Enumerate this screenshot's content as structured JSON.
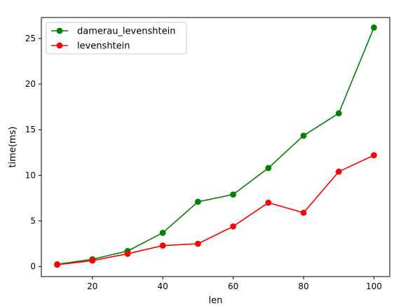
{
  "chart_data": {
    "type": "line",
    "xlabel": "len",
    "ylabel": "time(ms)",
    "x": [
      10,
      20,
      30,
      40,
      50,
      60,
      70,
      80,
      90,
      100
    ],
    "xlim": [
      5.5,
      104.5
    ],
    "ylim": [
      -1.1,
      27.3
    ],
    "xticks": [
      20,
      40,
      60,
      80,
      100
    ],
    "yticks": [
      0,
      5,
      10,
      15,
      20,
      25
    ],
    "grid": false,
    "legend_position": "top-left",
    "series": [
      {
        "name": "damerau_levenshtein",
        "color": "#008000",
        "marker": "circle",
        "values": [
          0.25,
          0.8,
          1.7,
          3.7,
          7.1,
          7.9,
          10.8,
          14.35,
          16.8,
          26.2
        ]
      },
      {
        "name": "levenshtein",
        "color": "#ff0000",
        "marker": "circle",
        "values": [
          0.2,
          0.65,
          1.4,
          2.3,
          2.5,
          4.4,
          7.0,
          5.9,
          10.4,
          12.2
        ]
      }
    ]
  }
}
